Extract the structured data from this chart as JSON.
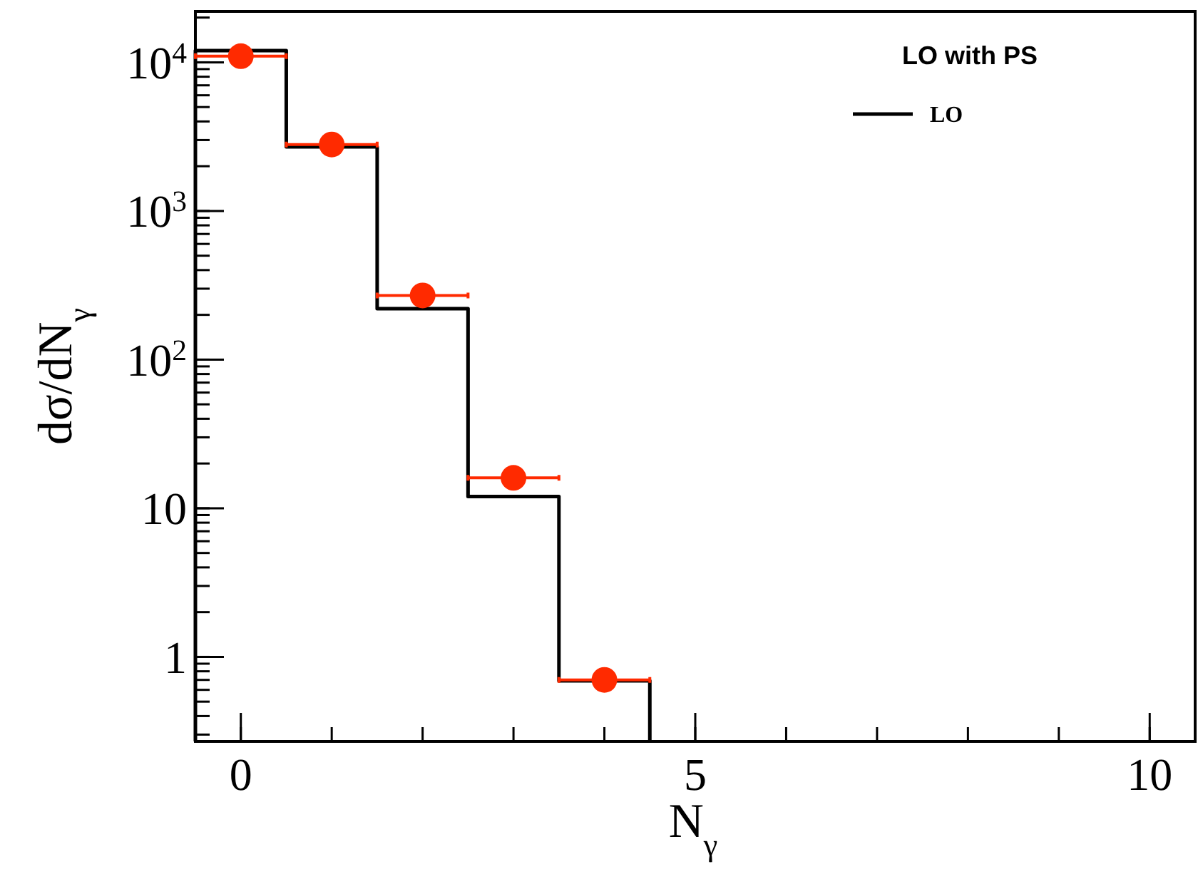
{
  "chart_data": {
    "type": "histogram",
    "xlabel": "N$_{γ}$",
    "ylabel": "dσ/dN$_{γ}$",
    "legend_title": "LO with PS",
    "legend": "top right",
    "log": "y",
    "grid": false,
    "xlim": [
      -0.5,
      10.5
    ],
    "xticks": [
      0,
      5,
      10
    ],
    "ylim": [
      0.27,
      22000
    ],
    "yticks": [
      {
        "value": 1,
        "label": "1"
      },
      {
        "value": 10,
        "label": "10"
      },
      {
        "value": 100,
        "label": "10$^{2}$"
      },
      {
        "value": 1000,
        "label": "10$^{3}$"
      },
      {
        "value": 10000,
        "label": "10$^{4}$"
      }
    ],
    "series": [
      {
        "name": "LO",
        "color": "#000000",
        "bins": [
          -0.5,
          0.5,
          1.5,
          2.5,
          3.5,
          4.5
        ],
        "values": [
          12000,
          2700,
          220,
          12,
          0.69
        ]
      },
      {
        "type": "scatter",
        "color": "#ff2a00",
        "marker": "circle",
        "x": [
          0,
          1,
          2,
          3,
          4
        ],
        "values": [
          11000,
          2800,
          270,
          16,
          0.7
        ],
        "xerrors": [
          0.5,
          0.5,
          0.5,
          0.5,
          0.5
        ],
        "errors": [
          null,
          null,
          null,
          null,
          [
            0.58,
            0.8
          ]
        ]
      }
    ]
  }
}
